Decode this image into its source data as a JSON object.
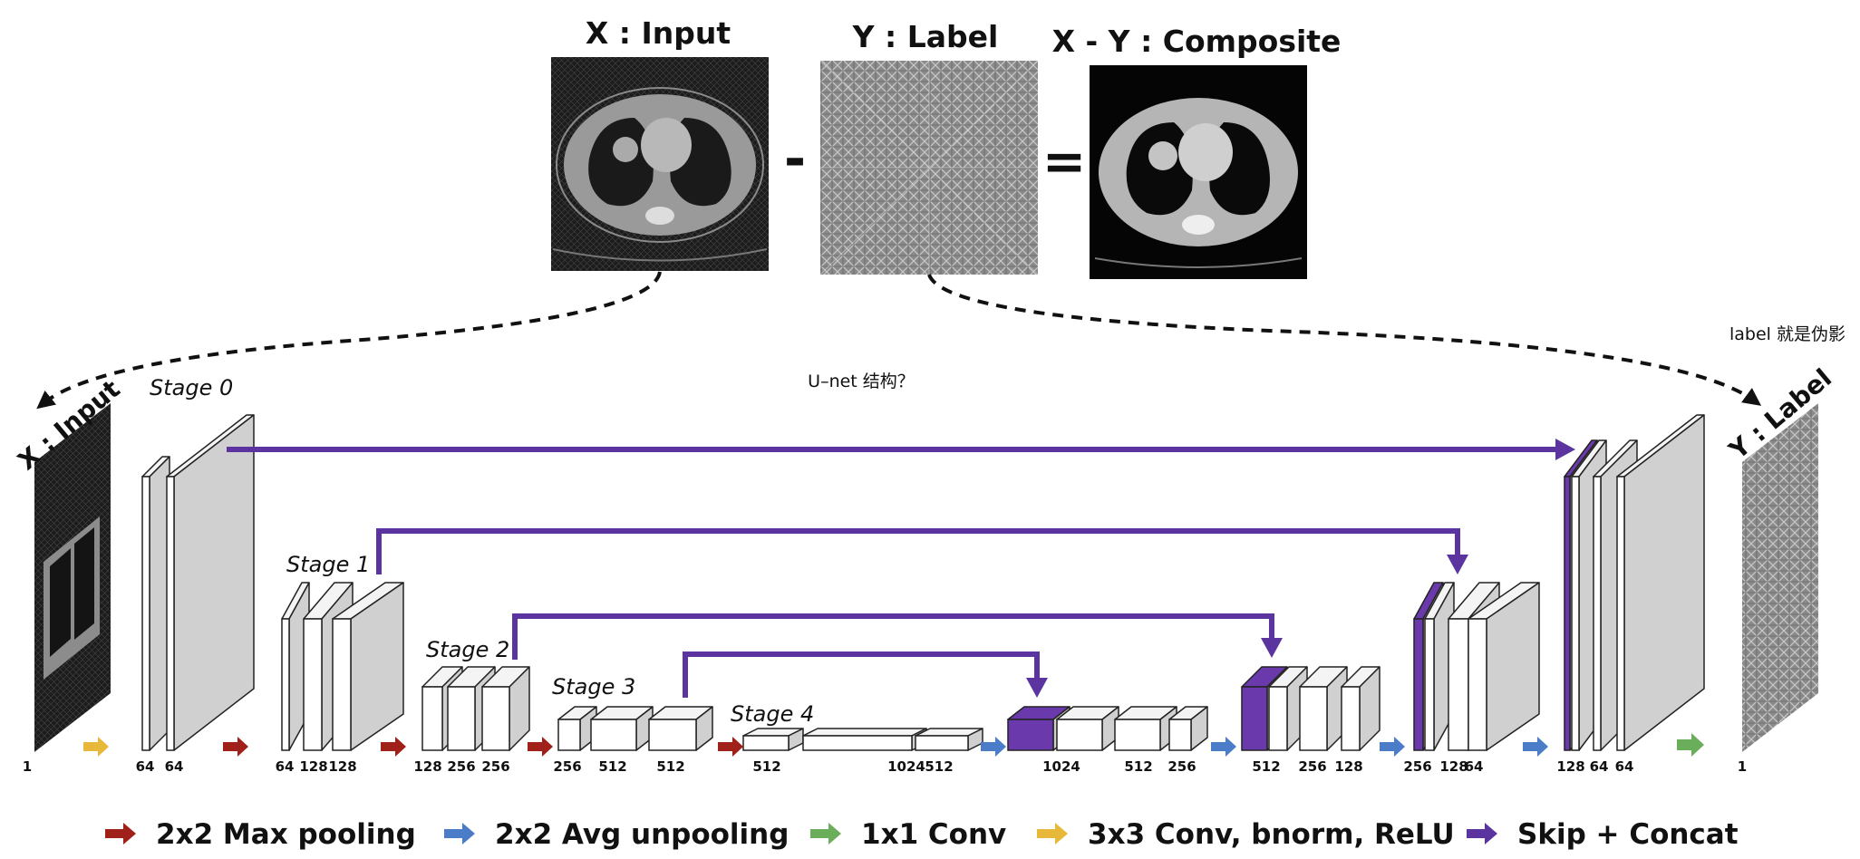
{
  "top": {
    "input_title": "X : Input",
    "label_title": "Y : Label",
    "composite_title": "X - Y : Composite",
    "minus": "-",
    "equals": "="
  },
  "notes": {
    "unet": "U–net 结构？",
    "label_note": "label 就是伪影"
  },
  "side": {
    "left": "X : Input",
    "right": "Y : Label"
  },
  "stages": [
    "Stage 0",
    "Stage 1",
    "Stage 2",
    "Stage 3",
    "Stage 4"
  ],
  "channels": [
    "1",
    "64",
    "64",
    "64",
    "128",
    "128",
    "128",
    "256",
    "256",
    "256",
    "512",
    "512",
    "512",
    "1024",
    "512",
    "1024",
    "512",
    "256",
    "512",
    "256",
    "128",
    "256",
    "128",
    "64",
    "128",
    "64",
    "64",
    "1"
  ],
  "legend": [
    {
      "label": "2x2 Max pooling",
      "color": "#a0201a"
    },
    {
      "label": "2x2 Avg unpooling",
      "color": "#4a7cc7"
    },
    {
      "label": "1x1 Conv",
      "color": "#6aad5a"
    },
    {
      "label": "3x3 Conv, bnorm, ReLU",
      "color": "#e8b83a"
    },
    {
      "label": "Skip + Concat",
      "color": "#5b34a0"
    }
  ],
  "colors": {
    "skip": "#5b34a0",
    "concat_fill": "#6a3aad",
    "block_side": "#d0d0d0"
  }
}
